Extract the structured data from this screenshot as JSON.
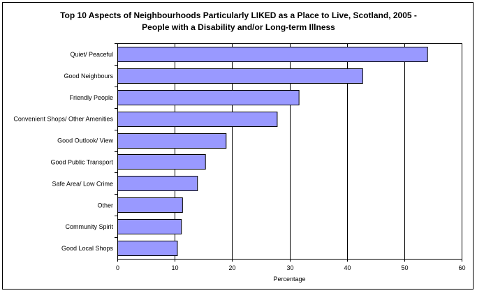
{
  "chart_data": {
    "type": "bar",
    "orientation": "horizontal",
    "title_line1": "Top 10 Aspects of Neighbourhoods Particularly LIKED as a Place to Live, Scotland, 2005 -",
    "title_line2": "People with a Disability and/or Long-term Illness",
    "xlabel": "Percentage",
    "ylabel": "",
    "categories": [
      "Quiet/ Peaceful",
      "Good Neighbours",
      "Friendly People",
      "Convenient Shops/ Other Amenities",
      "Good Outlook/ View",
      "Good Public Transport",
      "Safe Area/ Low Crime",
      "Other",
      "Community Spirit",
      "Good Local Shops"
    ],
    "values": [
      54,
      42.7,
      31.6,
      27.8,
      18.9,
      15.3,
      13.9,
      11.3,
      11.1,
      10.4
    ],
    "xlim": [
      0,
      60
    ],
    "xticks": [
      0,
      10,
      20,
      30,
      40,
      50,
      60
    ],
    "grid": "vertical",
    "legend": "none",
    "colors": {
      "bar_fill": "#9999ff",
      "bar_stroke": "#000000",
      "grid": "#000000"
    }
  }
}
